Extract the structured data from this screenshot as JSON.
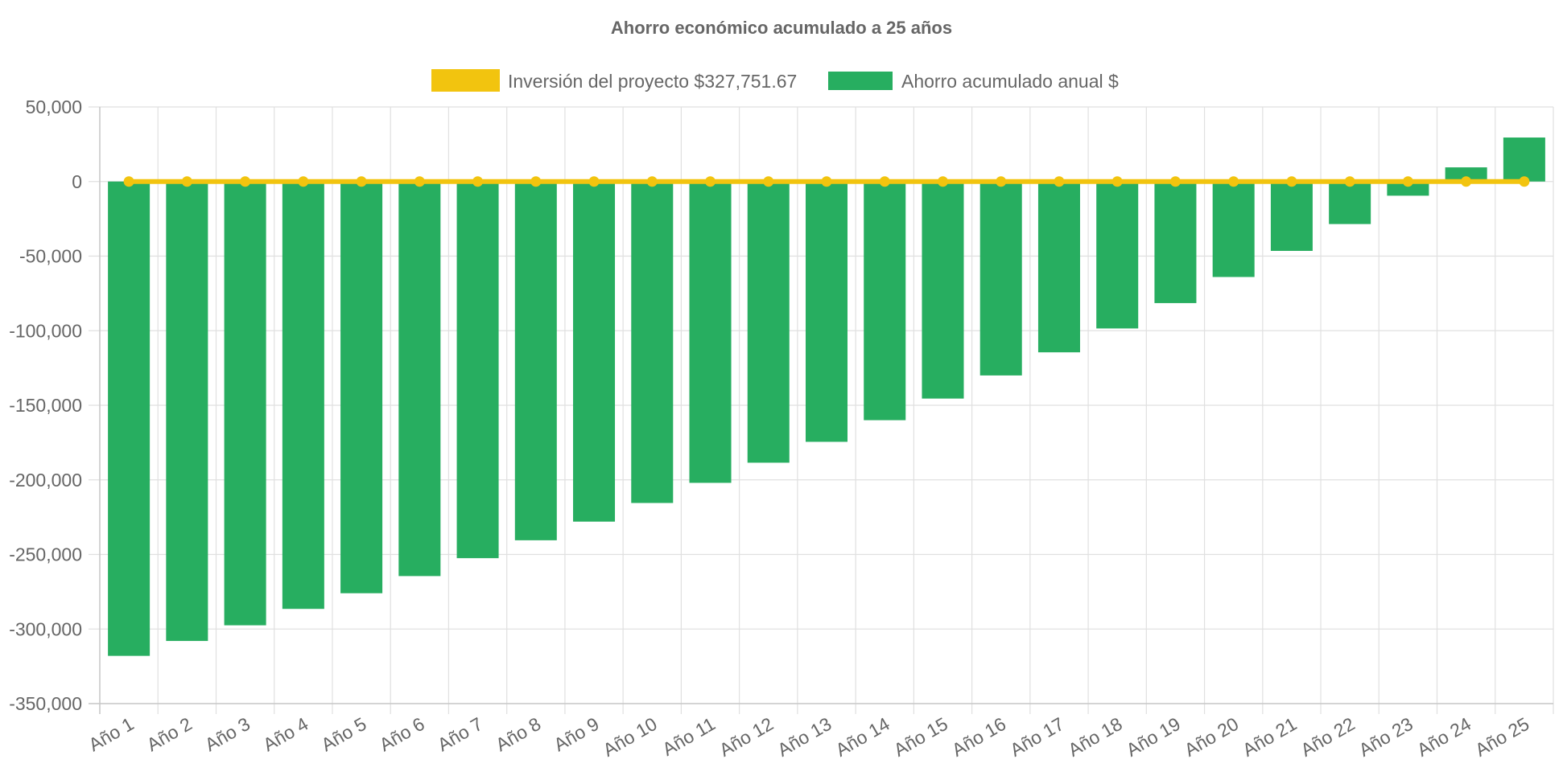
{
  "chart_data": {
    "type": "bar",
    "title": "Ahorro económico acumulado a 25 años",
    "xlabel": "",
    "ylabel": "",
    "ylim": [
      -350000,
      50000
    ],
    "yticks": [
      {
        "value": 50000,
        "label": "50,000"
      },
      {
        "value": 0,
        "label": "0"
      },
      {
        "value": -50000,
        "label": "-50,000"
      },
      {
        "value": -100000,
        "label": "-100,000"
      },
      {
        "value": -150000,
        "label": "-150,000"
      },
      {
        "value": -200000,
        "label": "-200,000"
      },
      {
        "value": -250000,
        "label": "-250,000"
      },
      {
        "value": -300000,
        "label": "-300,000"
      },
      {
        "value": -350000,
        "label": "-350,000"
      }
    ],
    "grid": true,
    "legend_position": "top-center",
    "categories": [
      "Año 1",
      "Año 2",
      "Año 3",
      "Año 4",
      "Año 5",
      "Año 6",
      "Año 7",
      "Año 8",
      "Año 9",
      "Año 10",
      "Año 11",
      "Año 12",
      "Año 13",
      "Año 14",
      "Año 15",
      "Año 16",
      "Año 17",
      "Año 18",
      "Año 19",
      "Año 20",
      "Año 21",
      "Año 22",
      "Año 23",
      "Año 24",
      "Año 25"
    ],
    "series": [
      {
        "name": "Inversión del proyecto $327,751.67",
        "type": "line",
        "color": "#f2c40f",
        "values": [
          0,
          0,
          0,
          0,
          0,
          0,
          0,
          0,
          0,
          0,
          0,
          0,
          0,
          0,
          0,
          0,
          0,
          0,
          0,
          0,
          0,
          0,
          0,
          0,
          0
        ]
      },
      {
        "name": "Ahorro acumulado anual $",
        "type": "bar",
        "color": "#27ae60",
        "values": [
          -318000,
          -308000,
          -297500,
          -286500,
          -276000,
          -264500,
          -252500,
          -240500,
          -228000,
          -215500,
          -202000,
          -188500,
          -174500,
          -160000,
          -145500,
          -130000,
          -114500,
          -98500,
          -81500,
          -64000,
          -46500,
          -28500,
          -9500,
          9500,
          29500
        ]
      }
    ]
  }
}
